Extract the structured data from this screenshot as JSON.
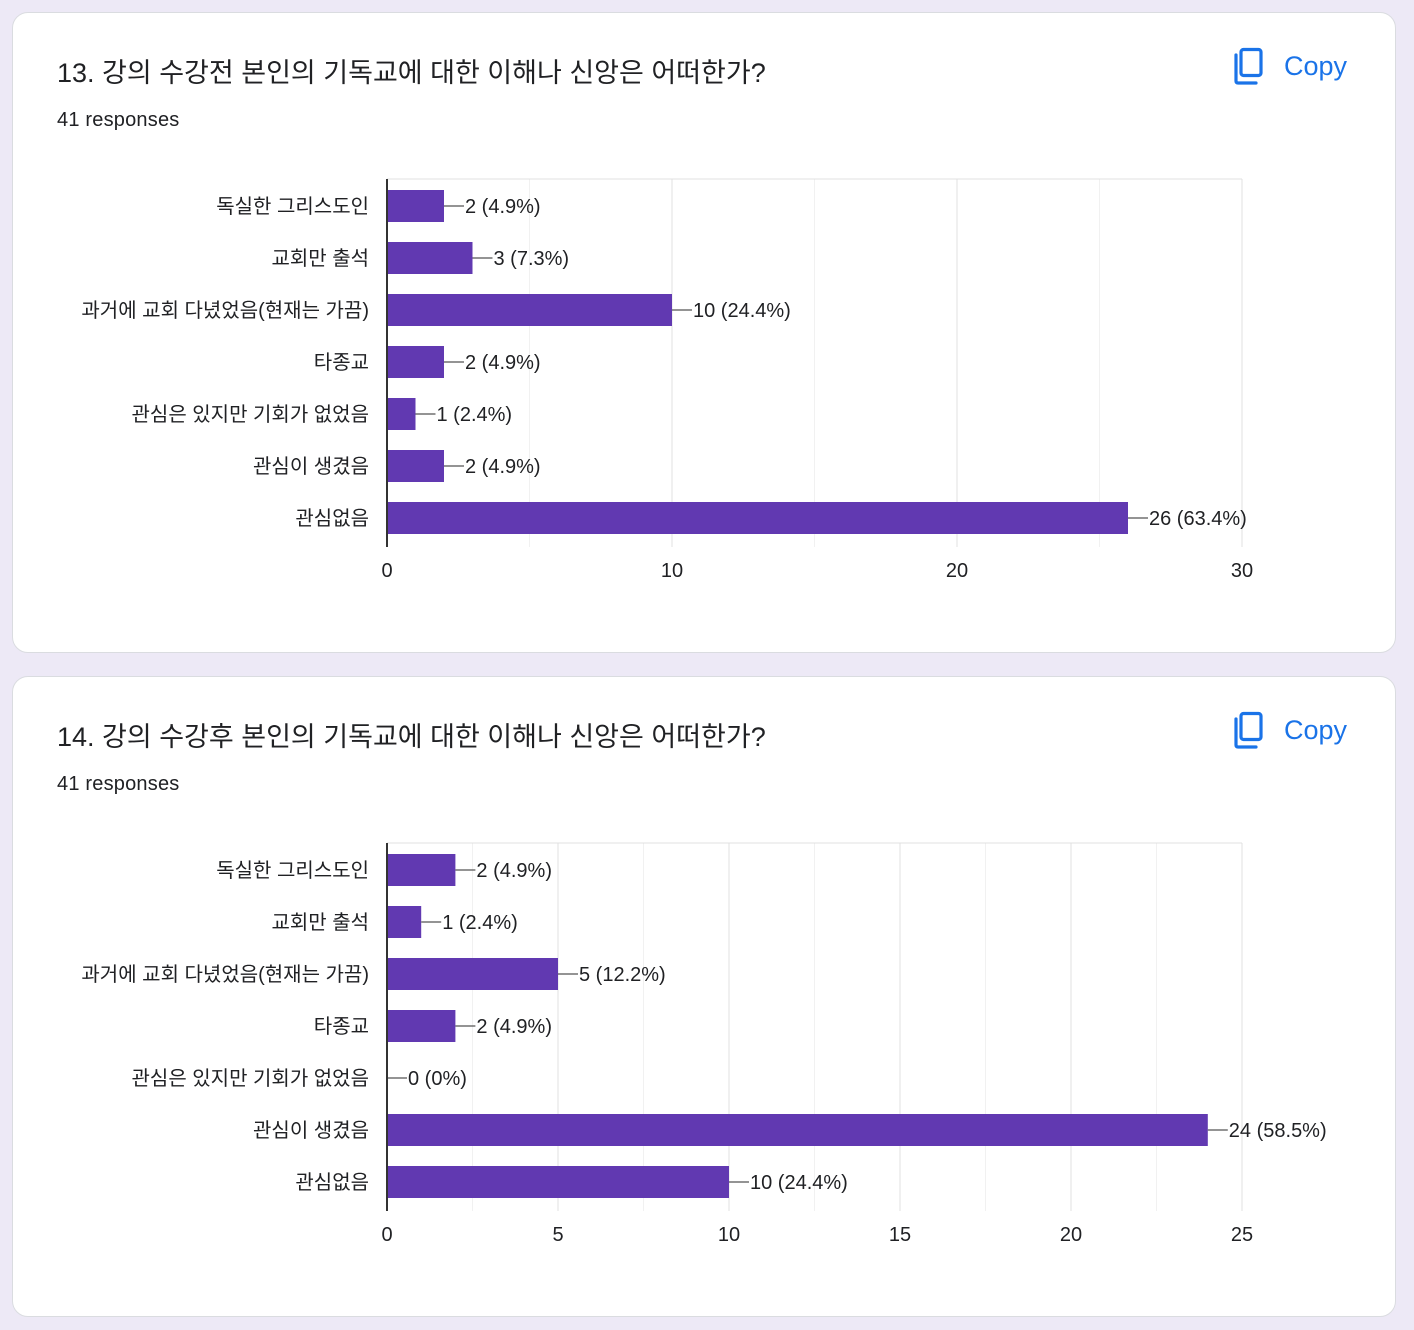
{
  "charts": [
    {
      "title": "13. 강의 수강전 본인의 기독교에 대한 이해나 신앙은 어떠한가?",
      "responses": "41 responses",
      "copy_label": "Copy"
    },
    {
      "title": "14. 강의 수강후 본인의 기독교에 대한 이해나 신앙은 어떠한가?",
      "responses": "41 responses",
      "copy_label": "Copy"
    }
  ],
  "colors": {
    "bar": "#6139b1",
    "accent": "#1a73e8",
    "background": "#ede9f6"
  },
  "chart_data": [
    {
      "type": "bar",
      "orientation": "horizontal",
      "title": "13. 강의 수강전 본인의 기독교에 대한 이해나 신앙은 어떠한가?",
      "categories": [
        "독실한 그리스도인",
        "교회만 출석",
        "과거에 교회 다녔었음(현재는 가끔)",
        "타종교",
        "관심은 있지만 기회가 없었음",
        "관심이 생겼음",
        "관심없음"
      ],
      "values": [
        2,
        3,
        10,
        2,
        1,
        2,
        26
      ],
      "data_labels": [
        "2 (4.9%)",
        "3 (7.3%)",
        "10 (24.4%)",
        "2 (4.9%)",
        "1 (2.4%)",
        "2 (4.9%)",
        "26 (63.4%)"
      ],
      "xlim": [
        0,
        30
      ],
      "xticks": [
        0,
        10,
        20,
        30
      ],
      "minor_gridlines": [
        5,
        15,
        25
      ],
      "grid": true
    },
    {
      "type": "bar",
      "orientation": "horizontal",
      "title": "14. 강의 수강후 본인의 기독교에 대한 이해나 신앙은 어떠한가?",
      "categories": [
        "독실한 그리스도인",
        "교회만 출석",
        "과거에 교회 다녔었음(현재는 가끔)",
        "타종교",
        "관심은 있지만 기회가 없었음",
        "관심이 생겼음",
        "관심없음"
      ],
      "values": [
        2,
        1,
        5,
        2,
        0,
        24,
        10
      ],
      "data_labels": [
        "2 (4.9%)",
        "1 (2.4%)",
        "5 (12.2%)",
        "2 (4.9%)",
        "0 (0%)",
        "24 (58.5%)",
        "10 (24.4%)"
      ],
      "xlim": [
        0,
        25
      ],
      "xticks": [
        0,
        5,
        10,
        15,
        20,
        25
      ],
      "minor_gridlines": [
        2.5,
        7.5,
        12.5,
        17.5,
        22.5
      ],
      "grid": true
    }
  ]
}
